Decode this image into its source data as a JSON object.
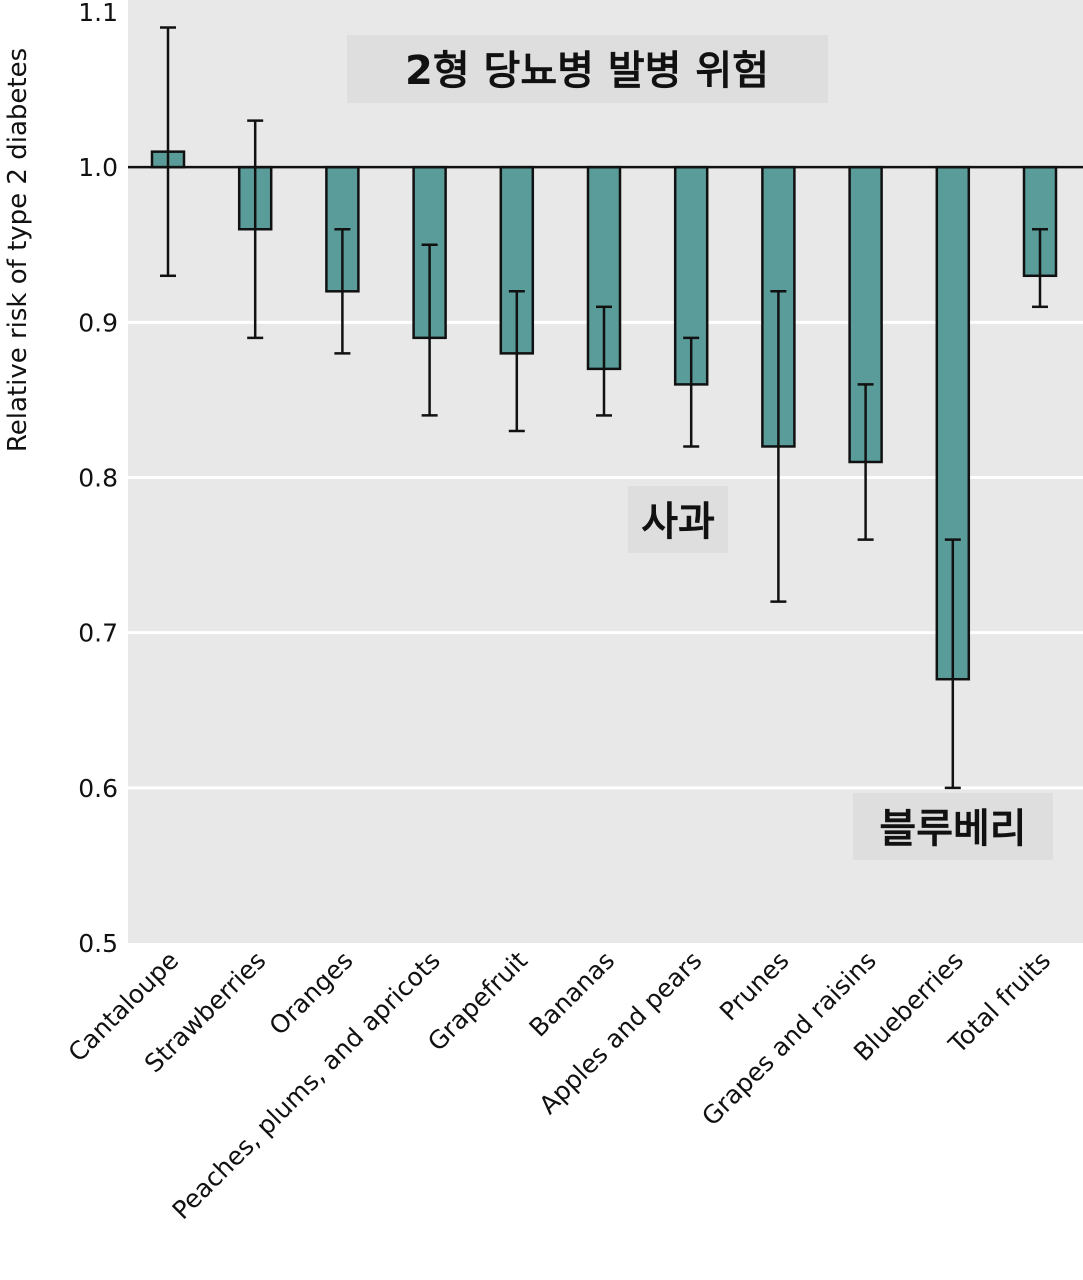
{
  "chart_data": {
    "type": "bar",
    "title": "",
    "xlabel": "",
    "ylabel": "Relative risk of type 2 diabetes",
    "ylim": [
      0.5,
      1.1
    ],
    "yticks": [
      "0.5",
      "0.6",
      "0.7",
      "0.8",
      "0.9",
      "1.0",
      "1.1"
    ],
    "baseline": 1.0,
    "grid": true,
    "categories": [
      "Cantaloupe",
      "Strawberries",
      "Oranges",
      "Peaches, plums, and apricots",
      "Grapefruit",
      "Bananas",
      "Apples and pears",
      "Prunes",
      "Grapes and raisins",
      "Blueberries",
      "Total fruits"
    ],
    "values": [
      1.01,
      0.96,
      0.92,
      0.89,
      0.88,
      0.87,
      0.86,
      0.82,
      0.81,
      0.67,
      0.93
    ],
    "ci_low": [
      0.93,
      0.89,
      0.88,
      0.84,
      0.83,
      0.84,
      0.82,
      0.72,
      0.76,
      0.6,
      0.91
    ],
    "ci_high": [
      1.09,
      1.03,
      0.96,
      0.95,
      0.92,
      0.91,
      0.89,
      0.92,
      0.86,
      0.76,
      0.96
    ],
    "annotations": [
      "2형 당뇨병 발병 위험",
      "사과",
      "블루베리"
    ],
    "colors": {
      "bar": "#5a9c99",
      "background": "#e8e8e8",
      "grid": "#ffffff",
      "annotation_box": "#dedede"
    }
  }
}
